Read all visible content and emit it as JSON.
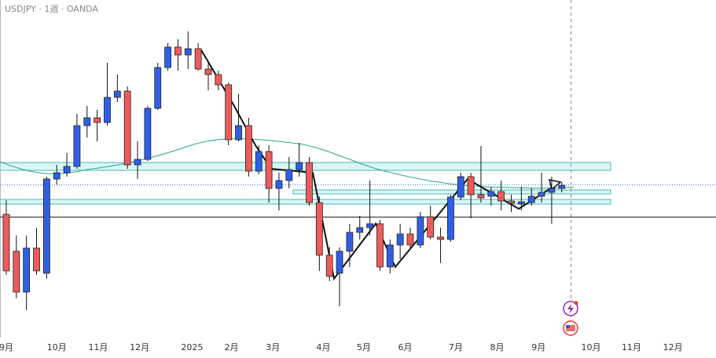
{
  "chart_data": {
    "type": "candlestick",
    "title": "USDJPY · 1週 · OANDA",
    "up_color": "#2f5fe6",
    "down_color": "#ef5a5a",
    "xlim": [
      -0.62,
      70.27
    ],
    "ylim": [
      138.5,
      160
    ],
    "xticks": [
      {
        "value": 0,
        "label": "9月"
      },
      {
        "value": 5,
        "label": "10月"
      },
      {
        "value": 9.1,
        "label": "11月"
      },
      {
        "value": 13.2,
        "label": "12月"
      },
      {
        "value": 18.4,
        "label": "2025"
      },
      {
        "value": 22.3,
        "label": "2月"
      },
      {
        "value": 26.4,
        "label": "3月"
      },
      {
        "value": 31.4,
        "label": "4月"
      },
      {
        "value": 35.4,
        "label": "5月"
      },
      {
        "value": 39.5,
        "label": "6月"
      },
      {
        "value": 44.5,
        "label": "7月"
      },
      {
        "value": 48.6,
        "label": "8月"
      },
      {
        "value": 52.7,
        "label": "9月"
      },
      {
        "value": 57.9,
        "label": "10月"
      },
      {
        "value": 61.9,
        "label": "11月"
      },
      {
        "value": 66,
        "label": "12月"
      }
    ],
    "open": [
      146.35,
      144,
      141.4,
      144.2,
      142.6,
      148.6,
      149,
      149.4,
      152,
      152.5,
      152.2,
      153.8,
      154.2,
      149.5,
      149.85,
      153.1,
      155.7,
      157,
      156.5,
      156.9,
      155.6,
      155.25,
      154.6,
      151.1,
      152,
      149.1,
      150.35,
      148,
      148.5,
      149.2,
      149.65,
      147.1,
      143.75,
      142.6,
      144,
      145.2,
      145.5,
      145.75,
      143,
      144.4,
      145.1,
      144.4,
      146.2,
      144.9,
      144.75,
      147.45,
      148.75,
      147.6,
      147.5,
      147.8,
      147.2,
      147,
      147.1,
      147.5,
      147.75,
      148
    ],
    "high": [
      147.25,
      145,
      145,
      145.5,
      148.75,
      149.5,
      150.25,
      152.75,
      153.25,
      153,
      156,
      155.25,
      154.5,
      151,
      153.25,
      156,
      157.25,
      157.5,
      158,
      157.25,
      156,
      155.5,
      154.75,
      154,
      152.5,
      150.75,
      150.75,
      149,
      150,
      150.9,
      150,
      147.5,
      144.25,
      144.25,
      145.75,
      146.25,
      148.5,
      146,
      144.75,
      145.75,
      145.5,
      146.5,
      146.9,
      145.5,
      147.6,
      149,
      149,
      150.7,
      148.1,
      148.5,
      147.6,
      148.1,
      148,
      149,
      148.75,
      148.4
    ],
    "low": [
      142.5,
      141,
      140.25,
      142.5,
      142.25,
      148.25,
      148.75,
      149.25,
      151.25,
      151,
      152,
      153.5,
      149.25,
      148.6,
      149.75,
      153,
      155.5,
      155.5,
      155.6,
      155.5,
      154.25,
      154.25,
      150.75,
      151,
      148.75,
      148.9,
      147.1,
      146.6,
      148,
      148.75,
      146.9,
      142.75,
      142.1,
      140.5,
      143,
      144.75,
      145,
      142.75,
      142.6,
      143.5,
      144.1,
      144.2,
      144.75,
      143.25,
      144.6,
      147.25,
      146.1,
      147.1,
      146.9,
      146.6,
      146.5,
      146.6,
      146.9,
      147.1,
      145.75,
      147.75
    ],
    "close": [
      142.75,
      141.4,
      144.2,
      142.75,
      148.6,
      149,
      149.4,
      152,
      152.5,
      152.2,
      153.8,
      154.2,
      149.5,
      149.85,
      153.1,
      155.7,
      157,
      156.5,
      156.9,
      155.6,
      155.25,
      154.6,
      151.1,
      152,
      149.1,
      150.35,
      148,
      148.5,
      149.2,
      149.65,
      147.1,
      143.75,
      142.4,
      144,
      145.2,
      145.5,
      145.75,
      143,
      144.4,
      145.1,
      144.4,
      146.2,
      144.9,
      144.75,
      147.45,
      148.75,
      147.6,
      147.4,
      147.8,
      147.2,
      147.05,
      147.15,
      147.5,
      147.75,
      148,
      148.2
    ]
  }
}
